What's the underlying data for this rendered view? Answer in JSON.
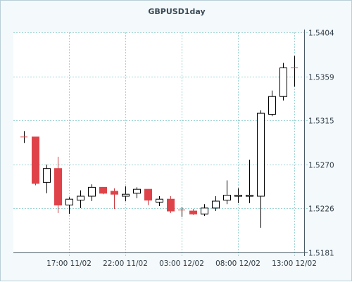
{
  "chart_data": {
    "type": "candlestick",
    "title": "GBPUSD1day",
    "grid": true,
    "y_axis": {
      "ticks": [
        "1.5181",
        "1.5226",
        "1.5270",
        "1.5315",
        "1.5359",
        "1.5404"
      ],
      "min": 1.5181,
      "max": 1.5404
    },
    "x_axis": {
      "ticks": [
        "17:00 11/02",
        "22:00 11/02",
        "03:00 12/02",
        "08:00 12/02",
        "13:00 12/02"
      ]
    },
    "candles": [
      {
        "open": 1.5298,
        "high": 1.5304,
        "low": 1.5292,
        "close": 1.5298
      },
      {
        "open": 1.5298,
        "high": 1.5298,
        "low": 1.5249,
        "close": 1.5251
      },
      {
        "open": 1.5252,
        "high": 1.527,
        "low": 1.5241,
        "close": 1.5266
      },
      {
        "open": 1.5266,
        "high": 1.5278,
        "low": 1.5221,
        "close": 1.5229
      },
      {
        "open": 1.5229,
        "high": 1.5237,
        "low": 1.522,
        "close": 1.5235
      },
      {
        "open": 1.5234,
        "high": 1.5244,
        "low": 1.5226,
        "close": 1.5238
      },
      {
        "open": 1.5238,
        "high": 1.525,
        "low": 1.5233,
        "close": 1.5247
      },
      {
        "open": 1.5247,
        "high": 1.5247,
        "low": 1.524,
        "close": 1.5241
      },
      {
        "open": 1.5243,
        "high": 1.5246,
        "low": 1.5225,
        "close": 1.524
      },
      {
        "open": 1.5238,
        "high": 1.5248,
        "low": 1.5233,
        "close": 1.524
      },
      {
        "open": 1.5241,
        "high": 1.5247,
        "low": 1.5236,
        "close": 1.5245
      },
      {
        "open": 1.5245,
        "high": 1.5245,
        "low": 1.5229,
        "close": 1.5234
      },
      {
        "open": 1.5232,
        "high": 1.5238,
        "low": 1.5228,
        "close": 1.5235
      },
      {
        "open": 1.5235,
        "high": 1.5238,
        "low": 1.5221,
        "close": 1.5223
      },
      {
        "open": 1.5224,
        "high": 1.5227,
        "low": 1.5217,
        "close": 1.5224
      },
      {
        "open": 1.5223,
        "high": 1.5225,
        "low": 1.5219,
        "close": 1.522
      },
      {
        "open": 1.522,
        "high": 1.523,
        "low": 1.5218,
        "close": 1.5226
      },
      {
        "open": 1.5226,
        "high": 1.5238,
        "low": 1.5223,
        "close": 1.5233
      },
      {
        "open": 1.5234,
        "high": 1.5254,
        "low": 1.523,
        "close": 1.5239
      },
      {
        "open": 1.5238,
        "high": 1.5246,
        "low": 1.5231,
        "close": 1.5239
      },
      {
        "open": 1.5238,
        "high": 1.5275,
        "low": 1.5231,
        "close": 1.5239
      },
      {
        "open": 1.5238,
        "high": 1.5325,
        "low": 1.5206,
        "close": 1.5322
      },
      {
        "open": 1.5321,
        "high": 1.5345,
        "low": 1.5319,
        "close": 1.5339
      },
      {
        "open": 1.5339,
        "high": 1.5373,
        "low": 1.5335,
        "close": 1.5368
      },
      {
        "open": 1.5368,
        "high": 1.538,
        "low": 1.5349,
        "close": 1.5368
      }
    ],
    "colors": {
      "up_fill": "#ffffff",
      "down_fill": "#df4349",
      "outline": "#000000",
      "grid": "#9ed4d4",
      "axis": "#4a5b66"
    }
  }
}
